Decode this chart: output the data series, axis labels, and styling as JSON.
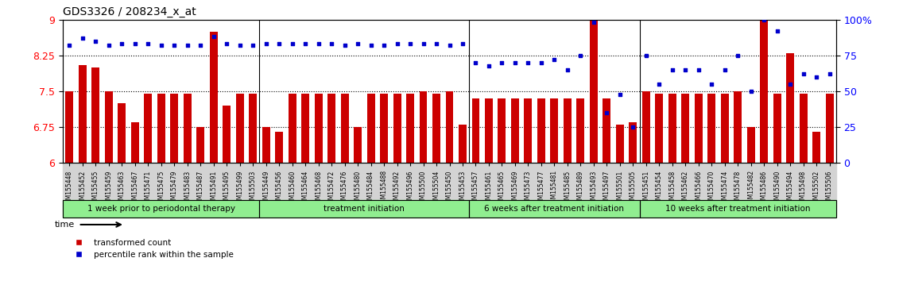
{
  "title": "GDS3326 / 208234_x_at",
  "samples": [
    "GSM155448",
    "GSM155452",
    "GSM155455",
    "GSM155459",
    "GSM155463",
    "GSM155467",
    "GSM155471",
    "GSM155475",
    "GSM155479",
    "GSM155483",
    "GSM155487",
    "GSM155491",
    "GSM155495",
    "GSM155499",
    "GSM155503",
    "GSM155449",
    "GSM155456",
    "GSM155460",
    "GSM155464",
    "GSM155468",
    "GSM155472",
    "GSM155476",
    "GSM155480",
    "GSM155484",
    "GSM155488",
    "GSM155492",
    "GSM155496",
    "GSM155500",
    "GSM155504",
    "GSM155450",
    "GSM155453",
    "GSM155457",
    "GSM155461",
    "GSM155465",
    "GSM155469",
    "GSM155473",
    "GSM155477",
    "GSM155481",
    "GSM155485",
    "GSM155489",
    "GSM155493",
    "GSM155497",
    "GSM155501",
    "GSM155505",
    "GSM155451",
    "GSM155454",
    "GSM155458",
    "GSM155462",
    "GSM155466",
    "GSM155470",
    "GSM155474",
    "GSM155478",
    "GSM155482",
    "GSM155486",
    "GSM155490",
    "GSM155494",
    "GSM155498",
    "GSM155502",
    "GSM155506"
  ],
  "bar_values": [
    7.5,
    8.05,
    8.0,
    7.5,
    7.25,
    6.85,
    7.45,
    7.45,
    7.45,
    7.45,
    6.75,
    8.75,
    7.2,
    7.45,
    7.45,
    6.75,
    6.65,
    7.45,
    7.45,
    7.45,
    7.45,
    7.45,
    6.75,
    7.45,
    7.45,
    7.45,
    7.45,
    7.5,
    7.45,
    7.5,
    6.8,
    7.35,
    7.35,
    7.35,
    7.35,
    7.35,
    7.35,
    7.35,
    7.35,
    7.35,
    9.0,
    7.35,
    6.8,
    6.85,
    7.5,
    7.45,
    7.45,
    7.45,
    7.45,
    7.45,
    7.45,
    7.5,
    6.75,
    9.0,
    7.45,
    8.3,
    7.45,
    6.65,
    7.45
  ],
  "dot_values": [
    82,
    87,
    85,
    82,
    83,
    83,
    83,
    82,
    82,
    82,
    82,
    88,
    83,
    82,
    82,
    83,
    83,
    83,
    83,
    83,
    83,
    82,
    83,
    82,
    82,
    83,
    83,
    83,
    83,
    82,
    83,
    70,
    68,
    70,
    70,
    70,
    70,
    72,
    65,
    75,
    98,
    35,
    48,
    25,
    75,
    55,
    65,
    65,
    65,
    55,
    65,
    75,
    50,
    100,
    92,
    55,
    62,
    60,
    62
  ],
  "groups": [
    {
      "label": "1 week prior to periodontal therapy",
      "start": 0,
      "end": 15
    },
    {
      "label": "treatment initiation",
      "start": 15,
      "end": 31
    },
    {
      "label": "6 weeks after treatment initiation",
      "start": 31,
      "end": 44
    },
    {
      "label": "10 weeks after treatment initiation",
      "start": 44,
      "end": 59
    }
  ],
  "ylim_left": [
    6,
    9
  ],
  "ylim_right": [
    0,
    100
  ],
  "yticks_left": [
    6,
    6.75,
    7.5,
    8.25,
    9
  ],
  "yticks_left_labels": [
    "6",
    "6.75",
    "7.5",
    "8.25",
    "9"
  ],
  "yticks_right": [
    0,
    25,
    50,
    75,
    100
  ],
  "yticks_right_labels": [
    "0",
    "25",
    "50",
    "75",
    "100%"
  ],
  "bar_color": "#CC0000",
  "dot_color": "#0000CC",
  "group_color": "#90EE90",
  "tick_bg_color": "#D3D3D3",
  "hlines": [
    6.75,
    7.5,
    8.25
  ]
}
